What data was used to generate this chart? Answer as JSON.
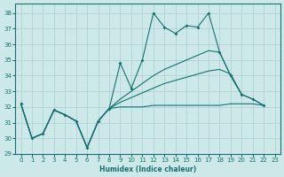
{
  "xlabel": "Humidex (Indice chaleur)",
  "bg_color": "#cce8e8",
  "grid_color": "#aacfcf",
  "line_color": "#1a7070",
  "xlim": [
    -0.5,
    23.5
  ],
  "ylim": [
    29,
    38.6
  ],
  "yticks": [
    29,
    30,
    31,
    32,
    33,
    34,
    35,
    36,
    37,
    38
  ],
  "xticks": [
    0,
    1,
    2,
    3,
    4,
    5,
    6,
    7,
    8,
    9,
    10,
    11,
    12,
    13,
    14,
    15,
    16,
    17,
    18,
    19,
    20,
    21,
    22,
    23
  ],
  "line_zigzag": [
    32.2,
    30.0,
    30.3,
    31.8,
    31.5,
    31.1,
    29.4,
    31.1,
    31.9,
    34.8,
    33.2,
    35.0,
    38.0,
    37.1,
    36.7,
    37.2,
    37.1,
    38.0,
    35.5,
    34.0,
    32.8,
    32.5,
    32.1
  ],
  "line_upper": [
    32.2,
    30.0,
    30.3,
    31.8,
    31.5,
    31.1,
    29.4,
    31.1,
    31.9,
    32.5,
    33.0,
    33.5,
    34.0,
    34.4,
    34.7,
    35.0,
    35.3,
    35.6,
    35.5,
    34.0,
    32.8,
    null,
    null
  ],
  "line_mid": [
    32.2,
    30.0,
    30.3,
    31.8,
    31.5,
    31.1,
    29.4,
    31.1,
    31.9,
    32.3,
    32.6,
    32.9,
    33.2,
    33.5,
    33.7,
    33.9,
    34.1,
    34.3,
    34.4,
    34.1,
    32.8,
    32.5,
    32.1
  ],
  "line_flat": [
    32.2,
    30.0,
    30.3,
    31.8,
    31.5,
    31.1,
    29.4,
    31.1,
    31.9,
    32.0,
    32.0,
    32.0,
    32.1,
    32.1,
    32.1,
    32.1,
    32.1,
    32.1,
    32.1,
    32.2,
    32.2,
    32.2,
    32.1
  ]
}
